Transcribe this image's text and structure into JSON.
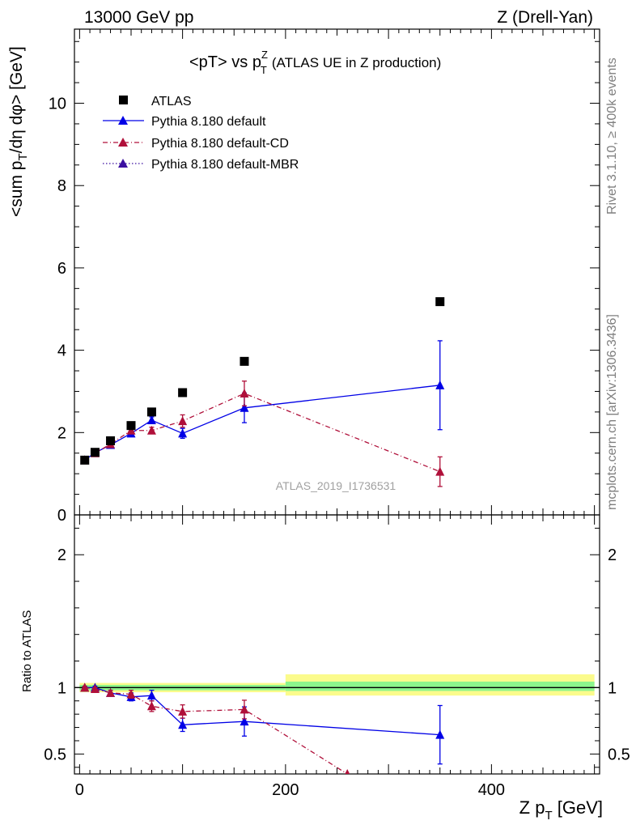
{
  "header": {
    "left": "13000 GeV pp",
    "right": "Z (Drell-Yan)"
  },
  "side_labels": {
    "rivet": "Rivet 3.1.10, ≥ 400k events",
    "mcplots": "mcplots.cern.ch [arXiv:1306.3436]"
  },
  "watermark": "ATLAS_2019_I1736531",
  "colors": {
    "atlas": "#000000",
    "default": "#0000e6",
    "cd": "#b0103a",
    "mbr": "#3b0fa0",
    "band_inner": "#8cf58c",
    "band_outer": "#fbfb8c"
  },
  "chart_data": [
    {
      "type": "scatter",
      "title": "<pT> vs p_T^Z (ATLAS UE in Z production)",
      "title_parts": {
        "main": "<pT> vs p",
        "sup": "Z",
        "sub": "T",
        "rest": "(ATLAS UE in Z production)"
      },
      "ylabel": "<sum p_T/dη dφ> [GeV]",
      "ylabel_parts": {
        "pre": "<sum p",
        "sub": "T",
        "post": "/dη dφ> [GeV]"
      },
      "xlim": [
        -5,
        505
      ],
      "ylim": [
        0,
        11.8
      ],
      "x_ticks": [
        0,
        200,
        400
      ],
      "y_ticks": [
        0,
        2,
        4,
        6,
        8,
        10
      ],
      "y_tick_labels": [
        "0",
        "2",
        "4",
        "6",
        "8",
        "10"
      ],
      "legend_position": "top-left",
      "series": [
        {
          "name": "ATLAS",
          "key": "atlas",
          "style": "square",
          "x": [
            5,
            15,
            30,
            50,
            70,
            100,
            160,
            350
          ],
          "y": [
            1.33,
            1.52,
            1.8,
            2.17,
            2.5,
            2.97,
            3.73,
            5.18
          ]
        },
        {
          "name": "Pythia 8.180 default",
          "key": "default",
          "style": "solid",
          "x": [
            5,
            15,
            30,
            50,
            70,
            100,
            160,
            350
          ],
          "y": [
            1.33,
            1.51,
            1.7,
            1.98,
            2.3,
            1.98,
            2.6,
            3.15
          ],
          "err": [
            0.03,
            0.03,
            0.04,
            0.06,
            0.08,
            0.12,
            0.36,
            1.08
          ]
        },
        {
          "name": "Pythia 8.180 default-CD",
          "key": "cd",
          "style": "dashdot",
          "x": [
            5,
            15,
            30,
            50,
            70,
            100,
            160,
            350
          ],
          "y": [
            1.33,
            1.5,
            1.72,
            2.05,
            2.05,
            2.28,
            2.95,
            1.05
          ],
          "err": [
            0.03,
            0.03,
            0.04,
            0.06,
            0.08,
            0.15,
            0.3,
            0.36
          ]
        },
        {
          "name": "Pythia 8.180 default-MBR",
          "key": "mbr",
          "style": "dotted",
          "x": [],
          "y": []
        }
      ]
    },
    {
      "type": "scatter",
      "title": "",
      "ylabel": "Ratio to ATLAS",
      "xlabel": "Z p_T [GeV]",
      "xlabel_parts": {
        "pre": "Z p",
        "sub": "T",
        "post": " [GeV]"
      },
      "xlim": [
        -5,
        505
      ],
      "ylim": [
        0.35,
        2.3
      ],
      "y_ticks": [
        0.5,
        1,
        2
      ],
      "y_tick_labels": [
        "0.5",
        "1",
        "2"
      ],
      "x_tick_labels": [
        "0",
        "200",
        "400"
      ],
      "reference_line": 1,
      "bands": [
        {
          "x": [
            0,
            200
          ],
          "inner": [
            0.98,
            1.02
          ],
          "outer": [
            0.965,
            1.035
          ]
        },
        {
          "x": [
            200,
            500
          ],
          "inner": [
            0.975,
            1.045
          ],
          "outer": [
            0.94,
            1.1
          ]
        }
      ],
      "series": [
        {
          "name": "Pythia 8.180 default",
          "key": "default",
          "style": "solid",
          "x": [
            5,
            15,
            30,
            50,
            70,
            100,
            160,
            350
          ],
          "y": [
            1.0,
            1.0,
            0.96,
            0.93,
            0.94,
            0.72,
            0.745,
            0.645
          ],
          "err": [
            0.01,
            0.01,
            0.02,
            0.03,
            0.04,
            0.05,
            0.11,
            0.22
          ]
        },
        {
          "name": "Pythia 8.180 default-CD",
          "key": "cd",
          "style": "dashdot",
          "x": [
            5,
            15,
            30,
            50,
            70,
            100,
            160,
            260
          ],
          "y": [
            1.0,
            0.99,
            0.96,
            0.95,
            0.86,
            0.82,
            0.835,
            0.35
          ],
          "err": [
            0.01,
            0.01,
            0.02,
            0.03,
            0.04,
            0.05,
            0.07,
            0
          ]
        }
      ]
    }
  ]
}
